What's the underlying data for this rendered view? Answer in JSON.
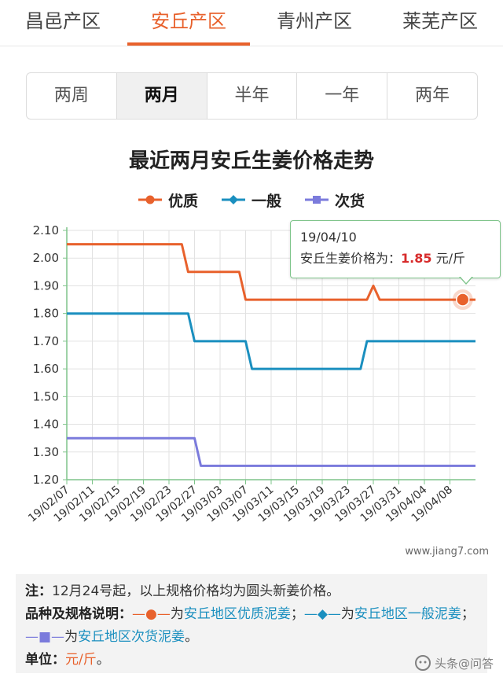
{
  "regions": [
    {
      "label": "昌邑产区",
      "active": false
    },
    {
      "label": "安丘产区",
      "active": true
    },
    {
      "label": "青州产区",
      "active": false
    },
    {
      "label": "莱芜产区",
      "active": false
    }
  ],
  "periods": [
    {
      "label": "两周",
      "active": false
    },
    {
      "label": "两月",
      "active": true
    },
    {
      "label": "半年",
      "active": false
    },
    {
      "label": "一年",
      "active": false
    },
    {
      "label": "两年",
      "active": false
    }
  ],
  "chart_data": {
    "type": "line",
    "title": "最近两月安丘生姜价格走势",
    "xlabel": "",
    "ylabel": "",
    "ylim": [
      1.2,
      2.1
    ],
    "yticks": [
      "1.20",
      "1.30",
      "1.40",
      "1.50",
      "1.60",
      "1.70",
      "1.80",
      "1.90",
      "2.00",
      "2.10"
    ],
    "x": [
      "19/02/07",
      "19/02/08",
      "19/02/09",
      "19/02/10",
      "19/02/11",
      "19/02/12",
      "19/02/13",
      "19/02/14",
      "19/02/15",
      "19/02/16",
      "19/02/17",
      "19/02/18",
      "19/02/19",
      "19/02/20",
      "19/02/21",
      "19/02/22",
      "19/02/23",
      "19/02/24",
      "19/02/25",
      "19/02/26",
      "19/02/27",
      "19/02/28",
      "19/03/01",
      "19/03/02",
      "19/03/03",
      "19/03/04",
      "19/03/05",
      "19/03/06",
      "19/03/07",
      "19/03/08",
      "19/03/09",
      "19/03/10",
      "19/03/11",
      "19/03/12",
      "19/03/13",
      "19/03/14",
      "19/03/15",
      "19/03/16",
      "19/03/17",
      "19/03/18",
      "19/03/19",
      "19/03/20",
      "19/03/21",
      "19/03/22",
      "19/03/23",
      "19/03/24",
      "19/03/25",
      "19/03/26",
      "19/03/27",
      "19/03/28",
      "19/03/29",
      "19/03/30",
      "19/03/31",
      "19/04/01",
      "19/04/02",
      "19/04/03",
      "19/04/04",
      "19/04/05",
      "19/04/06",
      "19/04/07",
      "19/04/08",
      "19/04/09",
      "19/04/10",
      "19/04/11",
      "19/04/12"
    ],
    "xtick_labels": [
      "19/02/07",
      "19/02/11",
      "19/02/15",
      "19/02/19",
      "19/02/23",
      "19/02/27",
      "19/03/03",
      "19/03/07",
      "19/03/11",
      "19/03/15",
      "19/03/19",
      "19/03/23",
      "19/03/27",
      "19/03/31",
      "19/04/04",
      "19/04/08"
    ],
    "series": [
      {
        "name": "优质",
        "color": "#e8612c",
        "marker": "circle",
        "values": [
          2.05,
          2.05,
          2.05,
          2.05,
          2.05,
          2.05,
          2.05,
          2.05,
          2.05,
          2.05,
          2.05,
          2.05,
          2.05,
          2.05,
          2.05,
          2.05,
          2.05,
          2.05,
          2.05,
          1.95,
          1.95,
          1.95,
          1.95,
          1.95,
          1.95,
          1.95,
          1.95,
          1.95,
          1.85,
          1.85,
          1.85,
          1.85,
          1.85,
          1.85,
          1.85,
          1.85,
          1.85,
          1.85,
          1.85,
          1.85,
          1.85,
          1.85,
          1.85,
          1.85,
          1.85,
          1.85,
          1.85,
          1.85,
          1.9,
          1.85,
          1.85,
          1.85,
          1.85,
          1.85,
          1.85,
          1.85,
          1.85,
          1.85,
          1.85,
          1.85,
          1.85,
          1.85,
          1.85,
          1.85,
          1.85
        ]
      },
      {
        "name": "一般",
        "color": "#1a8fbf",
        "marker": "diamond",
        "values": [
          1.8,
          1.8,
          1.8,
          1.8,
          1.8,
          1.8,
          1.8,
          1.8,
          1.8,
          1.8,
          1.8,
          1.8,
          1.8,
          1.8,
          1.8,
          1.8,
          1.8,
          1.8,
          1.8,
          1.8,
          1.7,
          1.7,
          1.7,
          1.7,
          1.7,
          1.7,
          1.7,
          1.7,
          1.7,
          1.6,
          1.6,
          1.6,
          1.6,
          1.6,
          1.6,
          1.6,
          1.6,
          1.6,
          1.6,
          1.6,
          1.6,
          1.6,
          1.6,
          1.6,
          1.6,
          1.6,
          1.6,
          1.7,
          1.7,
          1.7,
          1.7,
          1.7,
          1.7,
          1.7,
          1.7,
          1.7,
          1.7,
          1.7,
          1.7,
          1.7,
          1.7,
          1.7,
          1.7,
          1.7,
          1.7
        ]
      },
      {
        "name": "次货",
        "color": "#7b7bdc",
        "marker": "square",
        "values": [
          1.35,
          1.35,
          1.35,
          1.35,
          1.35,
          1.35,
          1.35,
          1.35,
          1.35,
          1.35,
          1.35,
          1.35,
          1.35,
          1.35,
          1.35,
          1.35,
          1.35,
          1.35,
          1.35,
          1.35,
          1.35,
          1.25,
          1.25,
          1.25,
          1.25,
          1.25,
          1.25,
          1.25,
          1.25,
          1.25,
          1.25,
          1.25,
          1.25,
          1.25,
          1.25,
          1.25,
          1.25,
          1.25,
          1.25,
          1.25,
          1.25,
          1.25,
          1.25,
          1.25,
          1.25,
          1.25,
          1.25,
          1.25,
          1.25,
          1.25,
          1.25,
          1.25,
          1.25,
          1.25,
          1.25,
          1.25,
          1.25,
          1.25,
          1.25,
          1.25,
          1.25,
          1.25,
          1.25,
          1.25,
          1.25
        ]
      }
    ],
    "legend_position": "top-center",
    "grid": true,
    "highlight": {
      "series": "优质",
      "x": "19/04/10",
      "value": 1.85
    }
  },
  "tooltip": {
    "date": "19/04/10",
    "label": "安丘生姜价格为：",
    "value": "1.85",
    "unit": "元/斤"
  },
  "site_watermark": "www.jiang7.com",
  "notes": {
    "note_label": "注：",
    "note_text": "12月24号起，以上规格价格均为圆头新姜价格。",
    "spec_label": "品种及规格说明：",
    "spec_1_marker": "—●—",
    "spec_1_pre": "为",
    "spec_1_text": "安丘地区优质泥姜",
    "spec_sep": "；",
    "spec_2_marker": "—◆—",
    "spec_2_pre": "为",
    "spec_2_text": "安丘地区一般泥姜",
    "spec_3_marker": "—■—",
    "spec_3_pre": "为",
    "spec_3_text": "安丘地区次货泥姜",
    "spec_end": "。",
    "unit_label": "单位：",
    "unit_value": "元/斤",
    "unit_end": "。"
  },
  "brand_watermark": "头条@问答"
}
